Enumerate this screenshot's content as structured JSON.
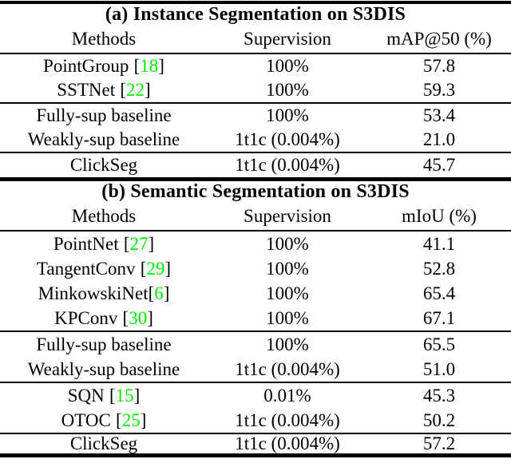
{
  "colors": {
    "background": "#ffffff",
    "text": "#000000",
    "rule": "#000000",
    "citation_green": "#00ee00"
  },
  "symbols": {
    "lbracket": "[",
    "rbracket": "]"
  },
  "tables": [
    {
      "label": "a",
      "title": "(a) Instance Segmentation on S3DIS",
      "columns": {
        "method": "Methods",
        "supervision": "Supervision",
        "metric": "mAP@50 (%)"
      },
      "rows": [
        {
          "method": "PointGroup",
          "cite": "18",
          "supervision": "100%",
          "value": "57.8"
        },
        {
          "method": "SSTNet",
          "cite": "22",
          "supervision": "100%",
          "value": "59.3"
        },
        {
          "method": "Fully-sup baseline",
          "supervision": "100%",
          "value": "53.4"
        },
        {
          "method": "Weakly-sup baseline",
          "supervision": "1t1c (0.004%)",
          "value": "21.0"
        },
        {
          "method": "ClickSeg",
          "supervision": "1t1c (0.004%)",
          "value": "45.7"
        }
      ]
    },
    {
      "label": "b",
      "title": "(b) Semantic Segmentation on S3DIS",
      "columns": {
        "method": "Methods",
        "supervision": "Supervision",
        "metric": "mIoU (%)"
      },
      "rows": [
        {
          "method": "PointNet",
          "cite": "27",
          "supervision": "100%",
          "value": "41.1"
        },
        {
          "method": "TangentConv",
          "cite": "29",
          "supervision": "100%",
          "value": "52.8"
        },
        {
          "method": "MinkowskiNet",
          "cite": "6",
          "cite_tight": true,
          "supervision": "100%",
          "value": "65.4"
        },
        {
          "method": "KPConv",
          "cite": "30",
          "supervision": "100%",
          "value": "67.1"
        },
        {
          "method": "Fully-sup baseline",
          "supervision": "100%",
          "value": "65.5"
        },
        {
          "method": "Weakly-sup baseline",
          "supervision": "1t1c (0.004%)",
          "value": "51.0"
        },
        {
          "method": "SQN",
          "cite": "15",
          "supervision": "0.01%",
          "value": "45.3"
        },
        {
          "method": "OTOC",
          "cite": "25",
          "supervision": "1t1c (0.004%)",
          "value": "50.2"
        },
        {
          "method": "ClickSeg",
          "supervision": "1t1c (0.004%)",
          "value": "57.2"
        }
      ]
    }
  ]
}
